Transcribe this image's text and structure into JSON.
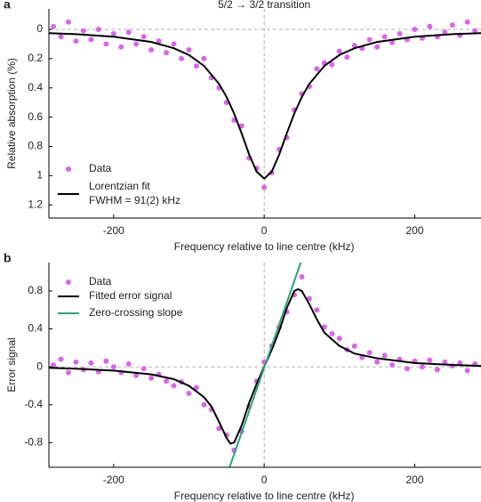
{
  "chart_data": [
    {
      "type": "scatter",
      "panel_label": "a",
      "title": "5/2 → 3/2 transition",
      "xlabel": "Frequency relative to line centre (kHz)",
      "ylabel": "Relative absorption (%)",
      "xlim": [
        -286,
        288
      ],
      "ylim": [
        -0.14,
        1.29
      ],
      "y_inverted": true,
      "xticks": [
        -200,
        0,
        200
      ],
      "yticks": [
        0,
        0.2,
        0.4,
        0.6,
        0.8,
        1.0,
        1.2
      ],
      "zero_lines": true,
      "annotation": "FWHM = 91(2) kHz",
      "series": [
        {
          "name": "Data",
          "kind": "dots",
          "color": "#d966e8",
          "x": [
            -280,
            -270,
            -260,
            -250,
            -240,
            -230,
            -220,
            -210,
            -200,
            -190,
            -180,
            -170,
            -160,
            -150,
            -140,
            -130,
            -120,
            -110,
            -100,
            -90,
            -80,
            -70,
            -60,
            -50,
            -40,
            -30,
            -20,
            -10,
            0,
            10,
            20,
            30,
            40,
            50,
            60,
            70,
            80,
            90,
            100,
            110,
            120,
            130,
            140,
            150,
            160,
            170,
            180,
            190,
            200,
            210,
            220,
            230,
            240,
            250,
            260,
            270,
            280
          ],
          "values": [
            -0.02,
            0.05,
            -0.05,
            0.08,
            0.01,
            0.07,
            0.0,
            0.1,
            0.03,
            0.12,
            0.02,
            0.1,
            0.05,
            0.14,
            0.08,
            0.16,
            0.1,
            0.2,
            0.14,
            0.25,
            0.2,
            0.33,
            0.4,
            0.5,
            0.62,
            0.66,
            0.88,
            0.95,
            1.08,
            0.98,
            0.82,
            0.74,
            0.55,
            0.44,
            0.39,
            0.27,
            0.23,
            0.24,
            0.15,
            0.19,
            0.11,
            0.13,
            0.07,
            0.12,
            0.05,
            0.09,
            0.03,
            0.07,
            0.0,
            0.06,
            -0.02,
            0.05,
            0.02,
            -0.03,
            0.04,
            -0.05,
            0.01
          ]
        },
        {
          "name": "Lorentzian fit",
          "kind": "line",
          "color": "#000000",
          "x": [
            -286,
            -250,
            -200,
            -150,
            -120,
            -100,
            -80,
            -60,
            -50,
            -40,
            -30,
            -20,
            -10,
            0,
            10,
            20,
            30,
            40,
            50,
            60,
            80,
            100,
            120,
            150,
            200,
            250,
            288
          ],
          "values": [
            0.026,
            0.033,
            0.05,
            0.086,
            0.129,
            0.175,
            0.249,
            0.372,
            0.462,
            0.575,
            0.711,
            0.855,
            0.973,
            1.02,
            0.973,
            0.855,
            0.711,
            0.575,
            0.462,
            0.372,
            0.249,
            0.175,
            0.129,
            0.086,
            0.05,
            0.033,
            0.026
          ]
        }
      ]
    },
    {
      "type": "scatter",
      "panel_label": "b",
      "xlabel": "Frequency relative to line centre (kHz)",
      "ylabel": "Error signal",
      "xlim": [
        -286,
        288
      ],
      "ylim": [
        -1.06,
        1.1
      ],
      "xticks": [
        -200,
        0,
        200
      ],
      "yticks": [
        -0.8,
        -0.4,
        0,
        0.4,
        0.8
      ],
      "zero_lines": true,
      "series": [
        {
          "name": "Data",
          "kind": "dots",
          "color": "#d966e8",
          "x": [
            -280,
            -270,
            -260,
            -250,
            -240,
            -230,
            -220,
            -210,
            -200,
            -190,
            -180,
            -170,
            -160,
            -150,
            -140,
            -130,
            -120,
            -110,
            -100,
            -90,
            -80,
            -70,
            -60,
            -50,
            -40,
            -30,
            -20,
            -10,
            0,
            10,
            20,
            30,
            40,
            50,
            60,
            70,
            80,
            90,
            100,
            110,
            120,
            130,
            140,
            150,
            160,
            170,
            180,
            190,
            200,
            210,
            220,
            230,
            240,
            250,
            260,
            270,
            280
          ],
          "values": [
            0.02,
            0.08,
            -0.06,
            0.05,
            -0.03,
            0.04,
            -0.05,
            0.06,
            0.0,
            -0.06,
            0.03,
            -0.09,
            -0.02,
            -0.12,
            -0.08,
            -0.15,
            -0.2,
            -0.16,
            -0.28,
            -0.22,
            -0.4,
            -0.45,
            -0.65,
            -0.72,
            -0.88,
            -0.68,
            -0.42,
            -0.15,
            0.05,
            0.22,
            0.42,
            0.58,
            0.76,
            0.95,
            0.72,
            0.6,
            0.42,
            0.35,
            0.3,
            0.18,
            0.22,
            0.1,
            0.15,
            0.05,
            0.12,
            0.02,
            0.08,
            -0.02,
            0.06,
            0.0,
            0.07,
            -0.03,
            0.05,
            0.01,
            0.04,
            -0.04,
            0.03
          ]
        },
        {
          "name": "Fitted error signal",
          "kind": "line",
          "color": "#000000",
          "x": [
            -286,
            -250,
            -200,
            -150,
            -120,
            -100,
            -80,
            -70,
            -60,
            -50,
            -45,
            -40,
            -30,
            -20,
            -10,
            0,
            10,
            20,
            30,
            40,
            45,
            50,
            60,
            70,
            80,
            100,
            120,
            150,
            200,
            250,
            288
          ],
          "values": [
            -0.01,
            -0.02,
            -0.04,
            -0.08,
            -0.13,
            -0.2,
            -0.32,
            -0.42,
            -0.58,
            -0.75,
            -0.81,
            -0.8,
            -0.62,
            -0.38,
            -0.18,
            0,
            0.18,
            0.38,
            0.62,
            0.8,
            0.82,
            0.8,
            0.66,
            0.5,
            0.36,
            0.22,
            0.14,
            0.09,
            0.04,
            0.02,
            0.01
          ]
        },
        {
          "name": "Zero-crossing slope",
          "kind": "line",
          "color": "#2ca37a",
          "x": [
            -46,
            48.5
          ],
          "values": [
            -1.06,
            1.1
          ]
        }
      ]
    }
  ]
}
